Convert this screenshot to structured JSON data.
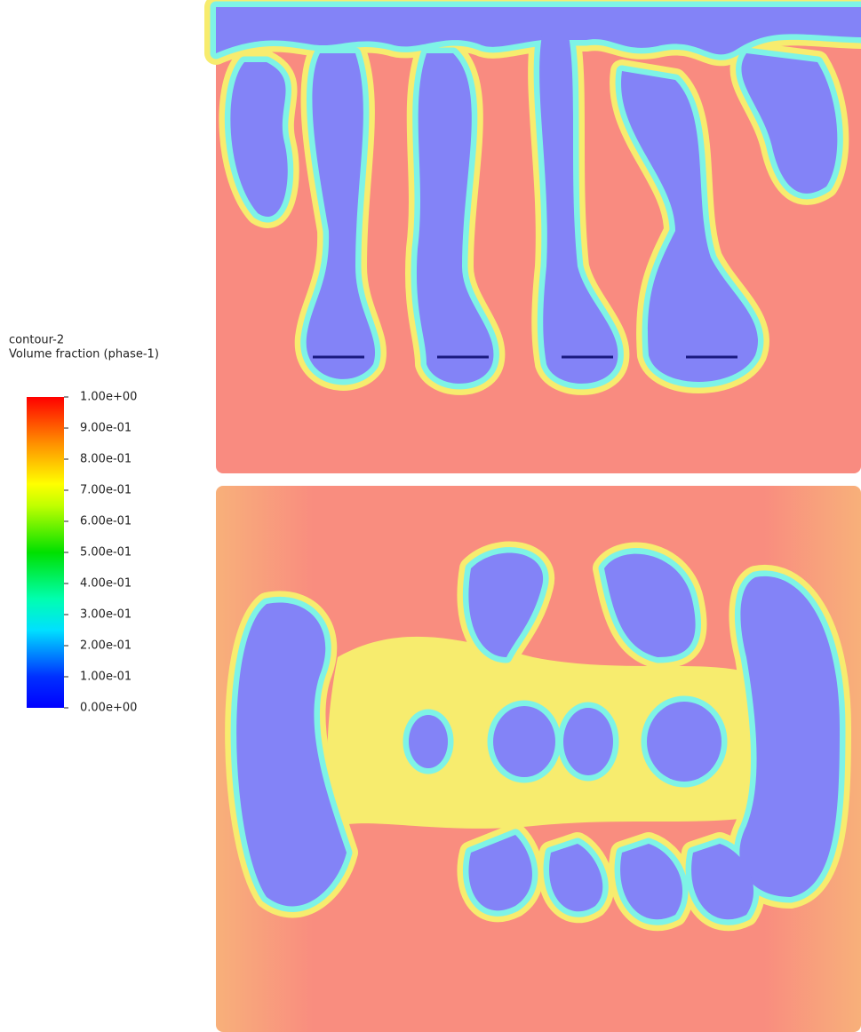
{
  "legend": {
    "title": "contour-2",
    "subtitle": "Volume fraction (phase-1)",
    "ticks": [
      {
        "value": 1,
        "label": "1.00e+00"
      },
      {
        "value": 0.9,
        "label": "9.00e-01"
      },
      {
        "value": 0.8,
        "label": "8.00e-01"
      },
      {
        "value": 0.7,
        "label": "7.00e-01"
      },
      {
        "value": 0.6,
        "label": "6.00e-01"
      },
      {
        "value": 0.5,
        "label": "5.00e-01"
      },
      {
        "value": 0.4,
        "label": "4.00e-01"
      },
      {
        "value": 0.3,
        "label": "3.00e-01"
      },
      {
        "value": 0.2,
        "label": "2.00e-01"
      },
      {
        "value": 0.1,
        "label": "1.00e-01"
      },
      {
        "value": 0,
        "label": "0.00e+00"
      }
    ]
  }
}
